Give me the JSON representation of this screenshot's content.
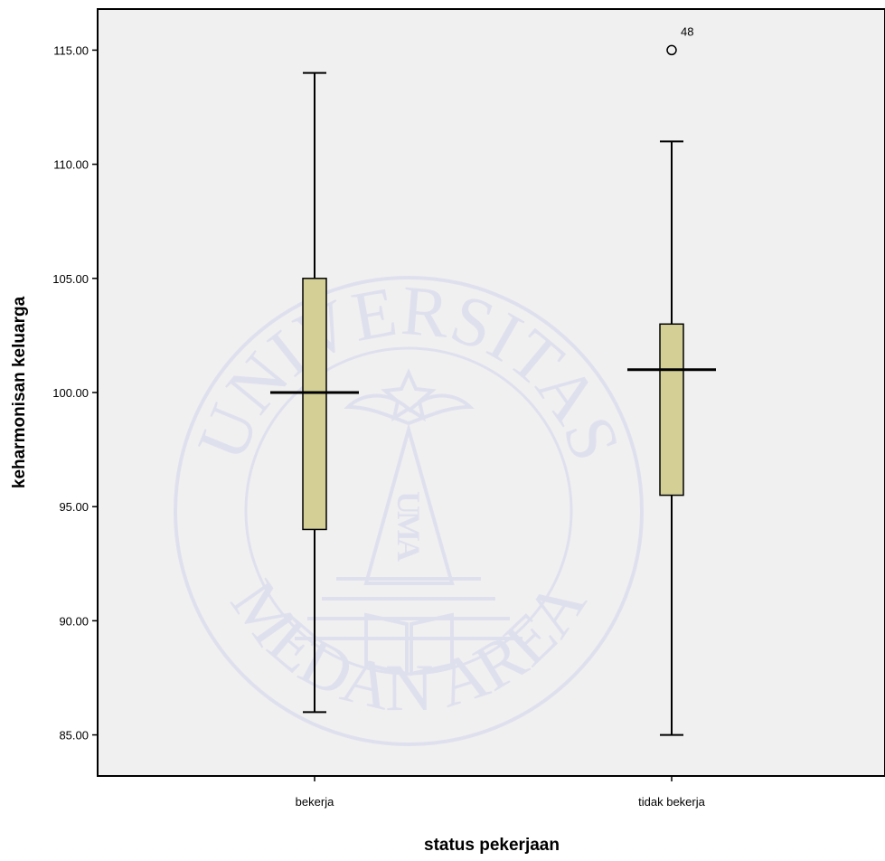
{
  "chart_data": {
    "type": "boxplot",
    "xlabel": "status pekerjaan",
    "ylabel": "keharmonisan keluarga",
    "categories": [
      "bekerja",
      "tidak bekerja"
    ],
    "ylim": [
      83.2,
      116.8
    ],
    "yticks": [
      "85.00",
      "90.00",
      "95.00",
      "100.00",
      "105.00",
      "110.00",
      "115.00"
    ],
    "grid": false,
    "box_color": "#d3cf95",
    "plot_background": "#f0f0f0",
    "boxes": [
      {
        "category": "bekerja",
        "whisker_low": 86,
        "q1": 94,
        "median": 100,
        "q3": 105,
        "whisker_high": 114,
        "outliers": []
      },
      {
        "category": "tidak bekerja",
        "whisker_low": 85,
        "q1": 95.5,
        "median": 101,
        "q3": 103,
        "whisker_high": 111,
        "outliers": [
          {
            "value": 115,
            "label": "48"
          }
        ]
      }
    ]
  },
  "watermark": {
    "logo": "Universitas Medan Area seal",
    "top_text": "UNIVERSITAS",
    "bottom_text": "MEDAN AREA",
    "center_text": "UMA"
  }
}
